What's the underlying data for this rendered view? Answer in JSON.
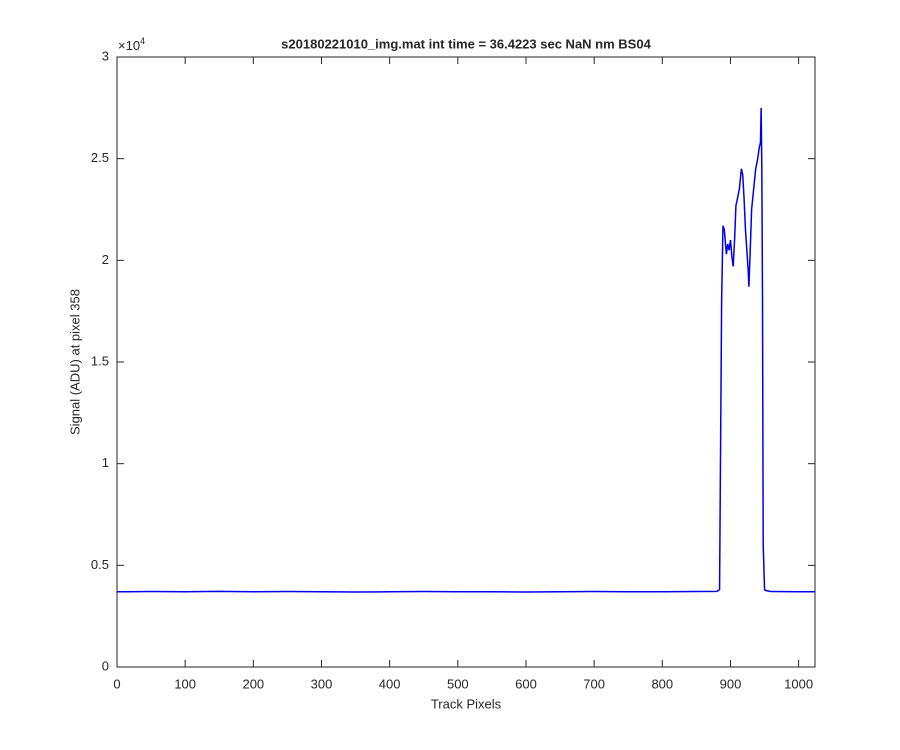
{
  "chart_data": {
    "type": "line",
    "title": "s20180221010_img.mat int time = 36.4223 sec  NaN nm BS04",
    "xlabel": "Track Pixels",
    "ylabel": "Signal (ADU) at pixel 358",
    "y_multiplier": {
      "base": "×10",
      "exponent": "4"
    },
    "x": [
      0,
      50,
      100,
      150,
      200,
      250,
      300,
      350,
      400,
      450,
      500,
      550,
      600,
      650,
      700,
      750,
      800,
      850,
      880,
      884,
      887,
      889,
      891,
      894,
      896,
      898,
      900,
      902,
      904,
      906,
      908,
      910,
      913,
      916,
      918,
      920,
      922,
      924,
      926,
      927,
      929,
      931,
      934,
      937,
      940,
      942,
      944,
      945,
      946,
      947,
      948,
      950,
      953,
      960,
      1000,
      1024
    ],
    "series": [
      {
        "name": "Signal",
        "color": "#0000ee",
        "values": [
          0.37,
          0.371,
          0.37,
          0.372,
          0.37,
          0.371,
          0.37,
          0.369,
          0.37,
          0.371,
          0.37,
          0.37,
          0.369,
          0.37,
          0.371,
          0.37,
          0.37,
          0.371,
          0.372,
          0.38,
          1.8,
          2.17,
          2.15,
          2.03,
          2.08,
          2.05,
          2.1,
          2.02,
          1.97,
          2.1,
          2.27,
          2.3,
          2.35,
          2.45,
          2.42,
          2.3,
          2.15,
          2.05,
          1.95,
          1.87,
          2.05,
          2.25,
          2.35,
          2.45,
          2.5,
          2.55,
          2.58,
          2.75,
          2.45,
          1.8,
          0.6,
          0.38,
          0.375,
          0.371,
          0.37,
          0.37
        ]
      }
    ],
    "xlim": [
      0,
      1024
    ],
    "ylim": [
      0,
      3
    ],
    "xticks": [
      0,
      100,
      200,
      300,
      400,
      500,
      600,
      700,
      800,
      900,
      1000
    ],
    "yticks": [
      0,
      0.5,
      1,
      1.5,
      2,
      2.5,
      3
    ],
    "grid": false
  }
}
